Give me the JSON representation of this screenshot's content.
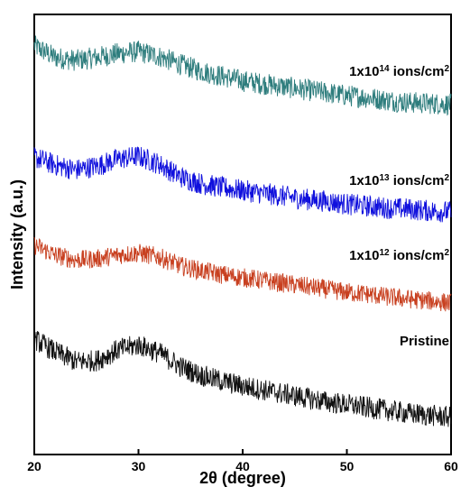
{
  "chart_data": {
    "type": "line",
    "title": "",
    "xlabel": "2θ (degree)",
    "ylabel": "Intensity (a.u.)",
    "xlim": [
      20,
      60
    ],
    "x_ticks": [
      20,
      30,
      40,
      50,
      60
    ],
    "y_ticks_shown": false,
    "grid": false,
    "legend": "labels placed at right end of each trace",
    "note": "Traces are vertically offset; y values are arbitrary intensity units with offsets.",
    "x_sample": [
      20,
      22,
      24,
      26,
      28,
      30,
      32,
      34,
      36,
      38,
      40,
      42,
      44,
      46,
      48,
      50,
      52,
      54,
      56,
      58,
      60
    ],
    "series": [
      {
        "name": "1x10¹⁴ ions/cm²",
        "label_base": "1x10",
        "label_exp": "14",
        "label_unit": " ions/cm",
        "label_unit_exp": "2",
        "color": "#2e7d7d",
        "noise": 1.6,
        "y": [
          10.8,
          9.6,
          9.3,
          9.6,
          10.0,
          10.2,
          9.7,
          8.9,
          8.2,
          7.7,
          7.2,
          6.9,
          6.6,
          6.3,
          6.0,
          5.7,
          5.5,
          5.2,
          5.0,
          4.9,
          4.8
        ]
      },
      {
        "name": "1x10¹³ ions/cm²",
        "label_base": "1x10",
        "label_exp": "13",
        "label_unit": " ions/cm",
        "label_unit_exp": "2",
        "color": "#1010dd",
        "noise": 1.6,
        "y": [
          -0.6,
          -1.4,
          -1.9,
          -1.5,
          -0.8,
          -0.5,
          -1.3,
          -2.6,
          -3.3,
          -3.7,
          -4.0,
          -4.3,
          -4.6,
          -4.9,
          -5.1,
          -5.4,
          -5.6,
          -5.8,
          -5.9,
          -6.1,
          -6.2
        ]
      },
      {
        "name": "1x10¹² ions/cm²",
        "label_base": "1x10",
        "label_exp": "12",
        "label_unit": " ions/cm",
        "label_unit_exp": "2",
        "color": "#c84020",
        "noise": 1.4,
        "y": [
          -9.6,
          -10.6,
          -11.1,
          -11.0,
          -10.6,
          -10.4,
          -10.8,
          -11.7,
          -12.2,
          -12.6,
          -12.9,
          -13.2,
          -13.5,
          -13.8,
          -14.1,
          -14.4,
          -14.6,
          -14.9,
          -15.1,
          -15.3,
          -15.5
        ]
      },
      {
        "name": "Pristine",
        "label_base": "Pristine",
        "label_exp": "",
        "label_unit": "",
        "label_unit_exp": "",
        "color": "#111111",
        "noise": 1.6,
        "y": [
          -19.2,
          -20.5,
          -21.5,
          -21.4,
          -20.3,
          -19.8,
          -20.6,
          -22.0,
          -22.9,
          -23.5,
          -24.0,
          -24.4,
          -24.8,
          -25.2,
          -25.6,
          -25.9,
          -26.2,
          -26.5,
          -26.8,
          -27.0,
          -27.2
        ]
      }
    ],
    "ylim": [
      -31,
      14
    ]
  }
}
